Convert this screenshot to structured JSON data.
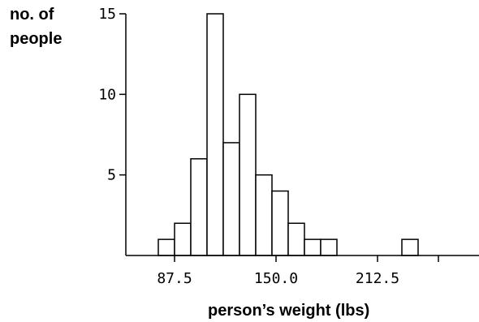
{
  "chart_data": {
    "type": "bar",
    "title": "",
    "ylabel_lines": [
      "no. of",
      "people"
    ],
    "xlabel": "person’s weight (lbs)",
    "bin_width": 10,
    "x_range": [
      57.5,
      275.0
    ],
    "ylim": [
      0,
      15
    ],
    "x_ticks": [
      87.5,
      150.0,
      212.5,
      250.0
    ],
    "x_tick_labels": [
      "87.5",
      "150.0",
      "212.5"
    ],
    "y_ticks": [
      5,
      10,
      15
    ],
    "y_tick_labels": [
      "5",
      "10",
      "15"
    ],
    "grid": false,
    "bars": [
      {
        "x_start": 77.5,
        "count": 1
      },
      {
        "x_start": 87.5,
        "count": 2
      },
      {
        "x_start": 97.5,
        "count": 6
      },
      {
        "x_start": 107.5,
        "count": 15
      },
      {
        "x_start": 117.5,
        "count": 7
      },
      {
        "x_start": 127.5,
        "count": 10
      },
      {
        "x_start": 137.5,
        "count": 5
      },
      {
        "x_start": 147.5,
        "count": 4
      },
      {
        "x_start": 157.5,
        "count": 2
      },
      {
        "x_start": 167.5,
        "count": 1
      },
      {
        "x_start": 177.5,
        "count": 1
      },
      {
        "x_start": 227.5,
        "count": 1
      }
    ]
  }
}
